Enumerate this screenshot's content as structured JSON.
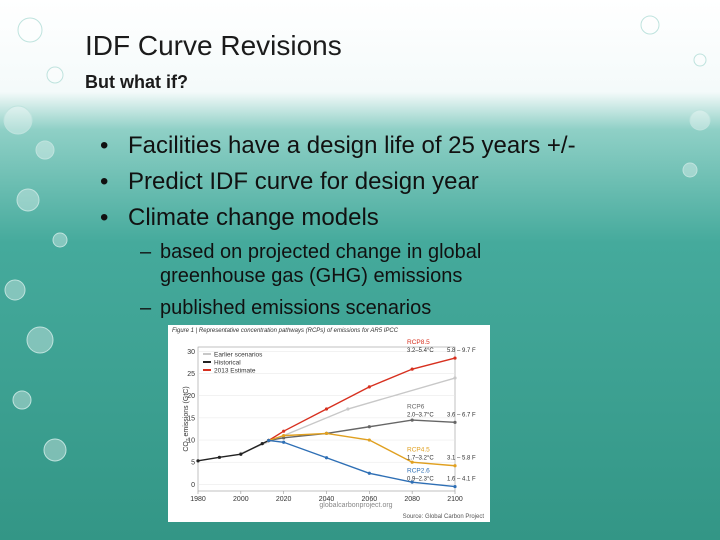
{
  "header": {
    "title": "IDF Curve Revisions",
    "subtitle": "But what if?"
  },
  "bullets": [
    "Facilities have a design life of 25 years +/-",
    "Predict IDF curve for design year",
    "Climate change models"
  ],
  "sub_bullets": [
    "based on projected change in global greenhouse gas (GHG) emissions",
    "published emissions scenarios"
  ],
  "figure": {
    "caption": "Figure 1 | Representative concentration pathways (RCPs) of emissions for AR5 IPCC",
    "y_label": "CO₂ emissions (GtC)",
    "xlim": [
      1980,
      2100
    ],
    "ylim": [
      -1.5,
      31
    ],
    "xticks": [
      1980,
      2000,
      2020,
      2040,
      2060,
      2080,
      2100
    ],
    "yticks": [
      0,
      5,
      10,
      15,
      20,
      25,
      30
    ],
    "series": [
      {
        "name": "Earlier scenarios",
        "color": "#c8c8c8",
        "x": [
          2000,
          2050,
          2100
        ],
        "values": [
          7,
          17,
          24
        ]
      },
      {
        "name": "Historical",
        "color": "#222222",
        "x": [
          1980,
          1990,
          2000,
          2010,
          2013
        ],
        "values": [
          5.3,
          6.1,
          6.8,
          9.2,
          9.9
        ]
      },
      {
        "name": "2013 Estimate",
        "color": "#d7301f",
        "x": [
          2013
        ],
        "values": [
          9.9
        ]
      },
      {
        "name": "RCP8.5",
        "color": "#d7301f",
        "x": [
          2013,
          2020,
          2040,
          2060,
          2080,
          2100
        ],
        "values": [
          9.9,
          12,
          17,
          22,
          26,
          28.5
        ],
        "labels": [
          "3.2–5.4°C",
          "5.8 – 9.7 F"
        ]
      },
      {
        "name": "RCP6",
        "color": "#666666",
        "x": [
          2013,
          2020,
          2040,
          2060,
          2080,
          2100
        ],
        "values": [
          9.9,
          10.5,
          11.5,
          13,
          14.5,
          14
        ],
        "labels": [
          "2.0–3.7°C",
          "3.6 – 6.7 F"
        ]
      },
      {
        "name": "RCP4.5",
        "color": "#e0a020",
        "x": [
          2013,
          2020,
          2040,
          2060,
          2080,
          2100
        ],
        "values": [
          9.9,
          11,
          11.5,
          10,
          5,
          4.2
        ],
        "labels": [
          "1.7–3.2°C",
          "3.1 – 5.8 F"
        ]
      },
      {
        "name": "RCP2.6",
        "color": "#2e6fb5",
        "x": [
          2013,
          2020,
          2040,
          2060,
          2080,
          2100
        ],
        "values": [
          9.9,
          9.5,
          6,
          2.5,
          0.5,
          -0.5
        ],
        "labels": [
          "0.9–2.3°C",
          "1.6 – 4.1 F"
        ]
      }
    ],
    "website": "globalcarbonproject.org",
    "source": "Source: Global Carbon Project"
  }
}
